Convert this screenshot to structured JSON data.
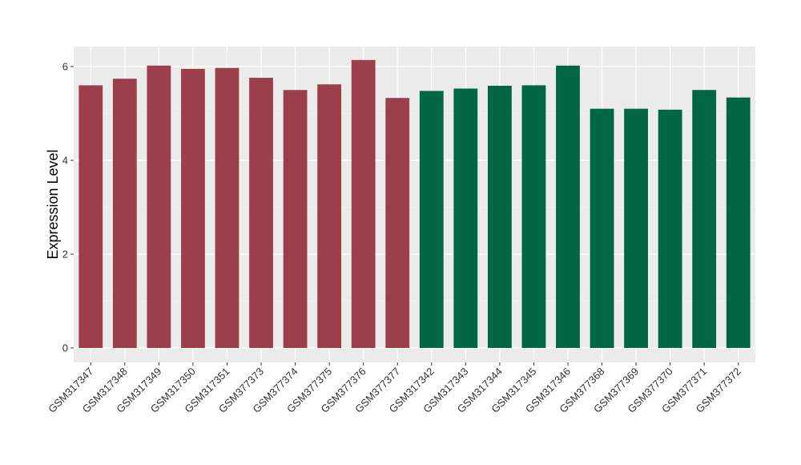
{
  "chart_data": {
    "type": "bar",
    "title": "",
    "xlabel": "",
    "ylabel": "Expression Level",
    "ylim": [
      0,
      6.3
    ],
    "yticks": [
      0,
      2,
      4,
      6
    ],
    "grid": true,
    "legend": "none",
    "background": "#ebebeb",
    "colors": {
      "group_a": "#9b3f4d",
      "group_b": "#006644"
    },
    "categories": [
      "GSM317347",
      "GSM317348",
      "GSM317349",
      "GSM317350",
      "GSM317351",
      "GSM377373",
      "GSM377374",
      "GSM377375",
      "GSM377376",
      "GSM377377",
      "GSM317342",
      "GSM317343",
      "GSM317344",
      "GSM317345",
      "GSM317346",
      "GSM377368",
      "GSM377369",
      "GSM377370",
      "GSM377371",
      "GSM377372"
    ],
    "values": [
      5.6,
      5.74,
      6.02,
      5.95,
      5.97,
      5.76,
      5.5,
      5.62,
      6.14,
      5.33,
      5.48,
      5.53,
      5.59,
      5.6,
      6.02,
      5.1,
      5.1,
      5.08,
      5.5,
      5.34
    ],
    "groups": [
      "a",
      "a",
      "a",
      "a",
      "a",
      "a",
      "a",
      "a",
      "a",
      "a",
      "b",
      "b",
      "b",
      "b",
      "b",
      "b",
      "b",
      "b",
      "b",
      "b"
    ]
  }
}
